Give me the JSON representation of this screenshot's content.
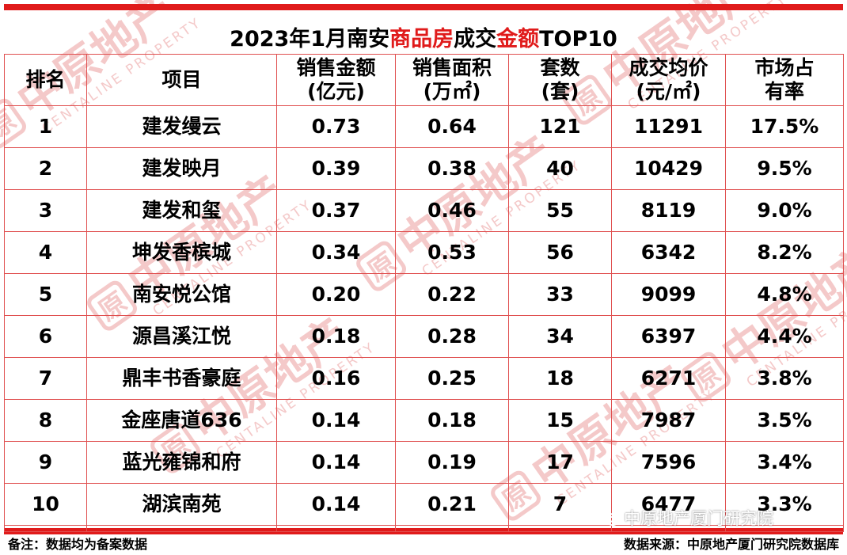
{
  "colors": {
    "accent": "#e01b1b",
    "grid": "#e05050",
    "watermark": "#f4c9c9"
  },
  "title": {
    "prefix": "2023年1月南安",
    "highlight1": "商品房",
    "middle": "成交",
    "highlight2": "金额",
    "suffix": "TOP10"
  },
  "table": {
    "headers": [
      {
        "line1": "排名",
        "line2": ""
      },
      {
        "line1": "项目",
        "line2": ""
      },
      {
        "line1": "销售金额",
        "line2": "(亿元)"
      },
      {
        "line1": "销售面积",
        "line2": "(万㎡)"
      },
      {
        "line1": "套数",
        "line2": "(套)"
      },
      {
        "line1": "成交均价",
        "line2": "(元/㎡)"
      },
      {
        "line1": "市场占",
        "line2": "有率"
      }
    ],
    "rows": [
      [
        "1",
        "建发缦云",
        "0.73",
        "0.64",
        "121",
        "11291",
        "17.5%"
      ],
      [
        "2",
        "建发映月",
        "0.39",
        "0.38",
        "40",
        "10429",
        "9.5%"
      ],
      [
        "3",
        "建发和玺",
        "0.37",
        "0.46",
        "55",
        "8119",
        "9.0%"
      ],
      [
        "4",
        "坤发香槟城",
        "0.34",
        "0.53",
        "56",
        "6342",
        "8.2%"
      ],
      [
        "5",
        "南安悦公馆",
        "0.20",
        "0.22",
        "33",
        "9099",
        "4.8%"
      ],
      [
        "6",
        "源昌溪江悦",
        "0.18",
        "0.28",
        "34",
        "6397",
        "4.4%"
      ],
      [
        "7",
        "鼎丰书香豪庭",
        "0.16",
        "0.25",
        "18",
        "6271",
        "3.8%"
      ],
      [
        "8",
        "金座唐道636",
        "0.14",
        "0.18",
        "15",
        "7987",
        "3.5%"
      ],
      [
        "9",
        "蓝光雍锦和府",
        "0.14",
        "0.19",
        "17",
        "7596",
        "3.4%"
      ],
      [
        "10",
        "湖滨南苑",
        "0.14",
        "0.21",
        "7",
        "6477",
        "3.3%"
      ]
    ]
  },
  "footer": {
    "note": "备注：数据均为备案数据",
    "source": "数据来源：中原地产厦门研究院数据库"
  },
  "wechat_label": "中原地产厦门研究院",
  "watermark": {
    "chinese": "中原地产",
    "english": "CENTALINE PROPERTY",
    "seal": "原"
  }
}
